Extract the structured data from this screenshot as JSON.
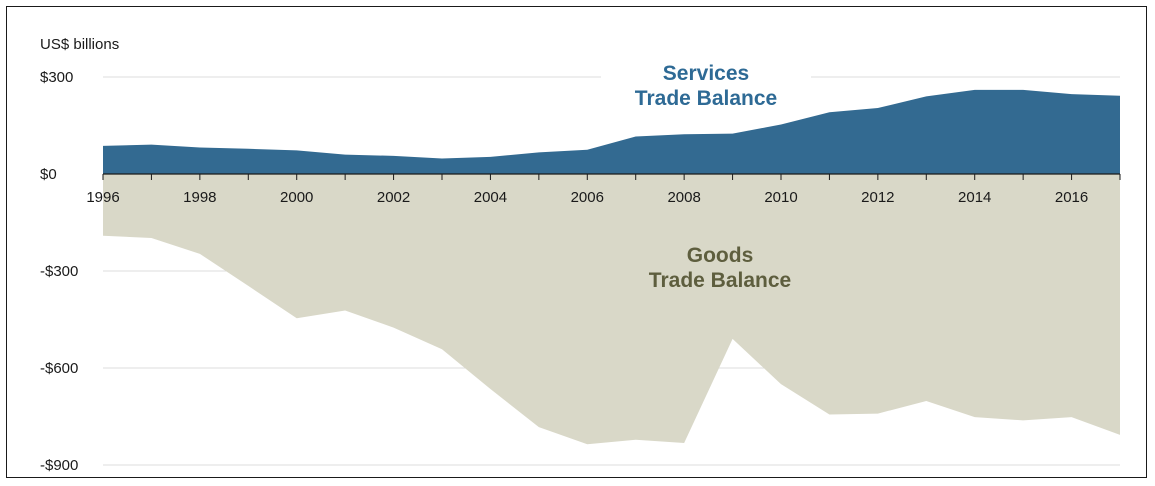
{
  "chart_data": {
    "type": "area",
    "unit_label": "US$ billions",
    "x": [
      1996,
      1997,
      1998,
      1999,
      2000,
      2001,
      2002,
      2003,
      2004,
      2005,
      2006,
      2007,
      2008,
      2009,
      2010,
      2011,
      2012,
      2013,
      2014,
      2015,
      2016,
      2017
    ],
    "series": [
      {
        "name": "Services Trade Balance",
        "label_lines": [
          "Services",
          "Trade Balance"
        ],
        "color": "#336a91",
        "label_color": "#2e6a95",
        "values": [
          87,
          91,
          82,
          78,
          73,
          60,
          56,
          48,
          53,
          67,
          75,
          116,
          123,
          125,
          153,
          191,
          204,
          240,
          260,
          260,
          247,
          242
        ]
      },
      {
        "name": "Goods Trade Balance",
        "label_lines": [
          "Goods",
          "Trade Balance"
        ],
        "color": "#d9d8c8",
        "label_color": "#5e5e3e",
        "values": [
          -191,
          -198,
          -247,
          -346,
          -446,
          -422,
          -475,
          -542,
          -665,
          -783,
          -836,
          -822,
          -832,
          -510,
          -650,
          -744,
          -741,
          -702,
          -752,
          -762,
          -752,
          -807
        ]
      }
    ],
    "ylim": [
      -900,
      300
    ],
    "yticks": [
      300,
      0,
      -300,
      -600,
      -900
    ],
    "ytick_labels": [
      "$300",
      "$0",
      "-$300",
      "-$600",
      "-$900"
    ],
    "xtick_labels": [
      "1996",
      "1998",
      "2000",
      "2002",
      "2004",
      "2006",
      "2008",
      "2010",
      "2012",
      "2014",
      "2016"
    ],
    "grid": true
  }
}
